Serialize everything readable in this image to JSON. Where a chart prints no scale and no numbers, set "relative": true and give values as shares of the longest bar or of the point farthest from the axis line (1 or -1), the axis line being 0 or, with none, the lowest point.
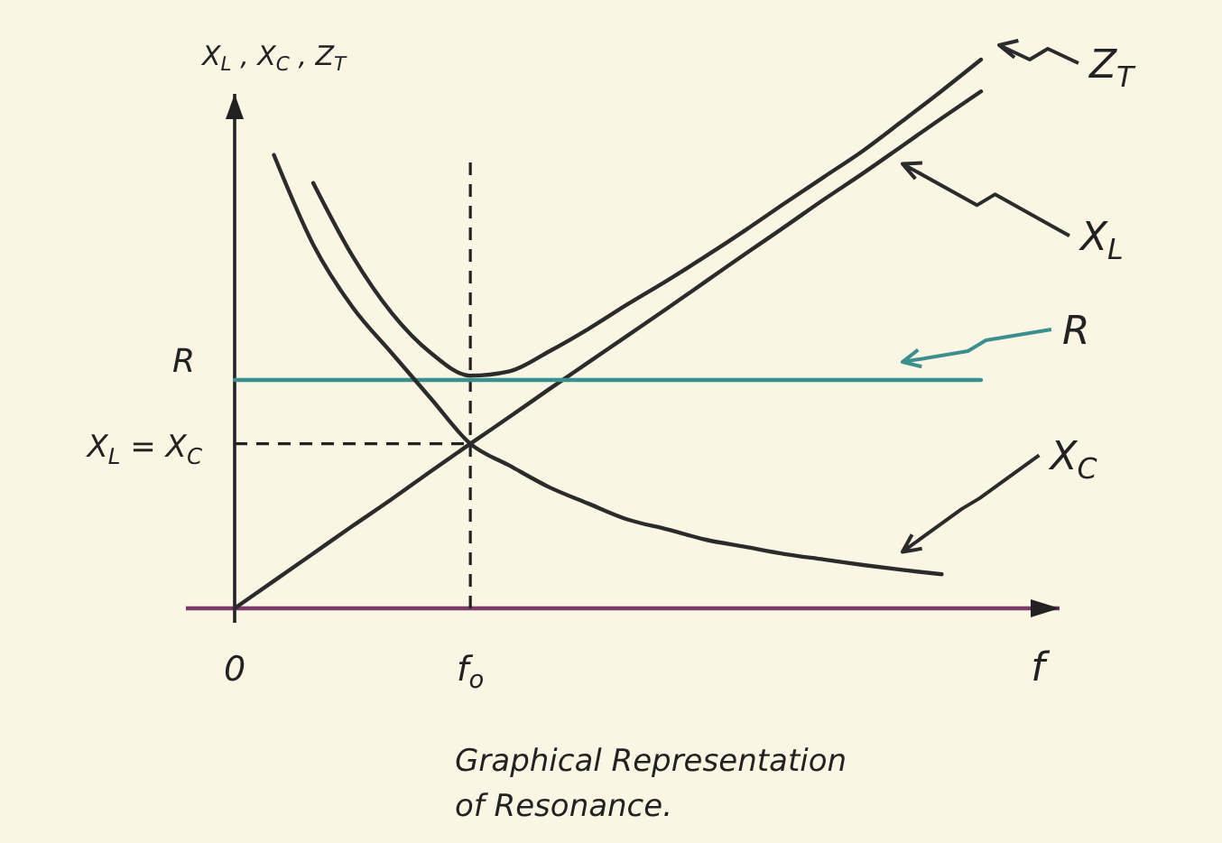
{
  "chart_data": {
    "type": "line",
    "relative": true,
    "title": "Graphical Representation of Resonance.",
    "xlabel": "f",
    "ylabel": "X$_{L}$ , X$_{C}$ , Z$_{T}$",
    "categories": [
      "0",
      null,
      null,
      null,
      null,
      null,
      "f$_{o}$",
      null,
      null,
      null,
      null,
      null,
      null,
      null,
      null,
      null,
      null,
      null,
      null,
      null,
      null,
      null
    ],
    "series": [
      {
        "name": "Z$_{T}$",
        "color": "#2b2b2b",
        "values": [
          null,
          null,
          0.775,
          0.642,
          0.538,
          0.465,
          0.424,
          0.432,
          0.468,
          0.509,
          0.554,
          0.597,
          0.642,
          0.689,
          0.738,
          0.786,
          0.834,
          0.888,
          0.943,
          1.0,
          null,
          null
        ]
      },
      {
        "name": "X$_{L}$",
        "color": "#2b2b2b",
        "values": [
          0,
          0.05,
          0.1,
          0.15,
          0.199,
          0.25,
          0.3,
          0.349,
          0.399,
          0.448,
          0.497,
          0.546,
          0.596,
          0.646,
          0.695,
          0.745,
          0.793,
          0.843,
          0.893,
          0.942,
          null,
          null
        ]
      },
      {
        "name": "R",
        "color": "#3b8f8f",
        "values": [
          0.416,
          0.416,
          0.416,
          0.416,
          0.416,
          0.416,
          0.416,
          0.416,
          0.416,
          0.416,
          0.416,
          0.416,
          0.416,
          0.416,
          0.416,
          0.416,
          0.416,
          0.416,
          0.416,
          0.416,
          null,
          null
        ]
      },
      {
        "name": "X$_{C}$",
        "color": "#2b2b2b",
        "values": [
          null,
          0.826,
          0.663,
          0.549,
          0.465,
          0.382,
          0.3,
          0.26,
          0.221,
          0.191,
          0.162,
          0.144,
          0.125,
          0.112,
          0.099,
          0.089,
          0.079,
          0.07,
          0.062,
          null,
          null,
          null
        ]
      }
    ],
    "ref_lines": [
      {
        "axis": "x",
        "value": "f$_{o}$",
        "line_style": "dashed"
      },
      {
        "axis": "y",
        "value": 0.3,
        "label": "X$_{L}$ = X$_{C}$",
        "line_style": "dashed"
      }
    ],
    "annotations": [
      "R"
    ],
    "legend": "right",
    "line_style": "solid"
  }
}
